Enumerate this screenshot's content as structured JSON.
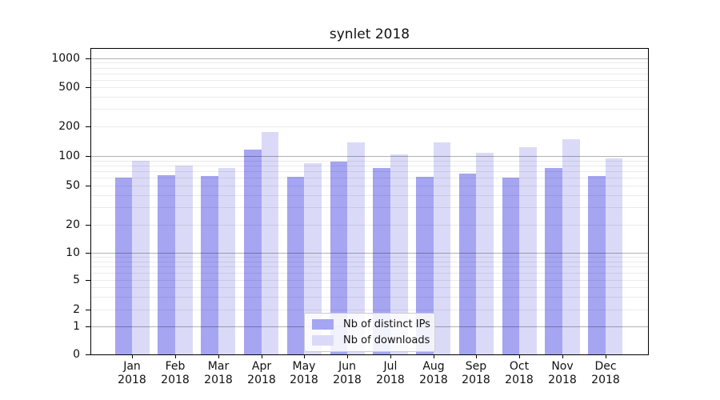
{
  "chart_data": {
    "type": "bar",
    "title": "synlet 2018",
    "categories": [
      "Jan",
      "Feb",
      "Mar",
      "Apr",
      "May",
      "Jun",
      "Jul",
      "Aug",
      "Sep",
      "Oct",
      "Nov",
      "Dec"
    ],
    "category_year": "2018",
    "series": [
      {
        "name": "Nb of distinct IPs",
        "color": "#a5a5f2",
        "values": [
          60,
          64,
          63,
          116,
          61,
          88,
          76,
          62,
          66,
          60,
          75,
          63
        ]
      },
      {
        "name": "Nb of downloads",
        "color": "#dadaf8",
        "values": [
          90,
          80,
          76,
          177,
          85,
          138,
          103,
          138,
          108,
          122,
          149,
          95
        ]
      }
    ],
    "xlabel": "",
    "ylabel": "",
    "yscale": "asinh-log",
    "ylim": [
      0,
      1250
    ],
    "ytick_values": [
      0,
      1,
      2,
      5,
      10,
      20,
      50,
      100,
      200,
      500,
      1000
    ],
    "ytick_labels": [
      "0",
      "1",
      "2",
      "5",
      "10",
      "20",
      "50",
      "100",
      "200",
      "500",
      "1000"
    ],
    "grid": {
      "major_decades": [
        1,
        10,
        100,
        1000
      ],
      "minor_on": true
    },
    "legend_position": "lower center",
    "colors": {
      "major_gridline": "#b3b3b3",
      "minor_gridline": "#ebebeb",
      "spine": "#000000",
      "background": "#ffffff"
    }
  }
}
